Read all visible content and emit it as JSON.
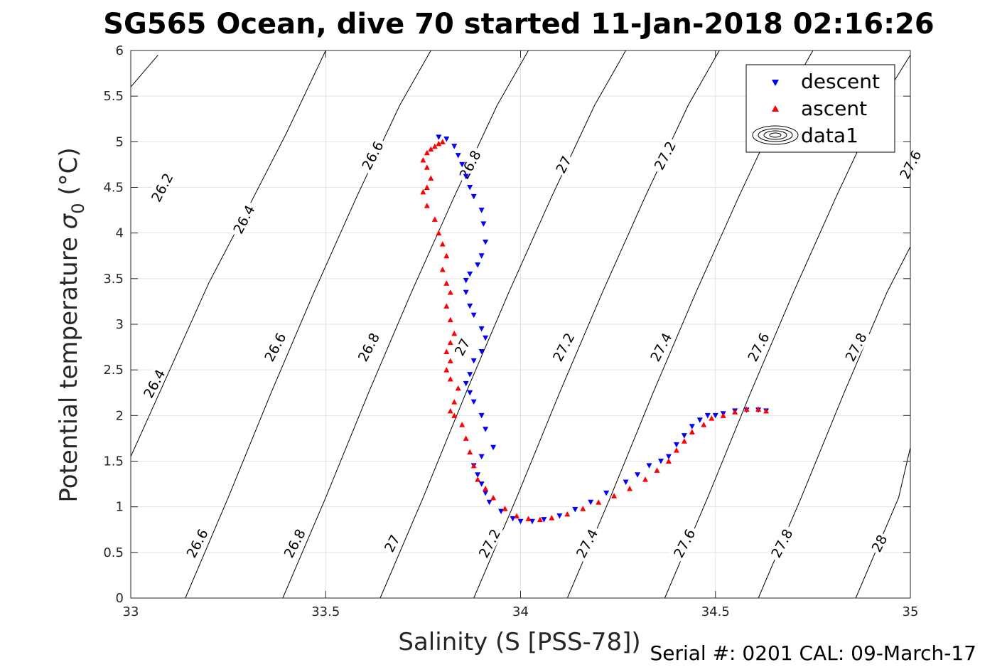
{
  "chart_data": {
    "type": "scatter",
    "title": "SG565 Ocean, dive 70 started 11-Jan-2018 02:16:26",
    "xlabel": "Salinity (S [PSS-78])",
    "ylabel_main": "Potential temperature ",
    "ylabel_sym": "σ",
    "ylabel_sub": "0",
    "ylabel_unit": " (°C)",
    "xlim": [
      33,
      35
    ],
    "ylim": [
      0,
      6
    ],
    "xticks": [
      33,
      33.5,
      34,
      34.5,
      35
    ],
    "xtick_labels": [
      "33",
      "33.5",
      "34",
      "34.5",
      "35"
    ],
    "yticks": [
      0,
      0.5,
      1,
      1.5,
      2,
      2.5,
      3,
      3.5,
      4,
      4.5,
      5,
      5.5,
      6
    ],
    "ytick_labels": [
      "0",
      "0.5",
      "1",
      "1.5",
      "2",
      "2.5",
      "3",
      "3.5",
      "4",
      "4.5",
      "5",
      "5.5",
      "6"
    ],
    "grid": true,
    "legend_position": "top-right",
    "series": [
      {
        "name": "descent",
        "marker": "triangle-down",
        "color": "#0000ff",
        "points": [
          [
            33.79,
            5.05
          ],
          [
            33.81,
            5.03
          ],
          [
            33.83,
            4.95
          ],
          [
            33.84,
            4.85
          ],
          [
            33.85,
            4.75
          ],
          [
            33.86,
            4.62
          ],
          [
            33.87,
            4.5
          ],
          [
            33.88,
            4.4
          ],
          [
            33.9,
            4.25
          ],
          [
            33.905,
            4.1
          ],
          [
            33.91,
            3.9
          ],
          [
            33.9,
            3.75
          ],
          [
            33.89,
            3.65
          ],
          [
            33.87,
            3.55
          ],
          [
            33.86,
            3.48
          ],
          [
            33.86,
            3.35
          ],
          [
            33.87,
            3.2
          ],
          [
            33.88,
            3.1
          ],
          [
            33.9,
            2.95
          ],
          [
            33.91,
            2.85
          ],
          [
            33.9,
            2.7
          ],
          [
            33.88,
            2.6
          ],
          [
            33.87,
            2.45
          ],
          [
            33.86,
            2.35
          ],
          [
            33.87,
            2.25
          ],
          [
            33.88,
            2.15
          ],
          [
            33.9,
            2.0
          ],
          [
            33.91,
            1.85
          ],
          [
            33.93,
            1.65
          ],
          [
            33.9,
            1.55
          ],
          [
            33.88,
            1.45
          ],
          [
            33.89,
            1.35
          ],
          [
            33.9,
            1.25
          ],
          [
            33.91,
            1.15
          ],
          [
            33.92,
            1.05
          ],
          [
            33.95,
            0.95
          ],
          [
            33.98,
            0.87
          ],
          [
            34.0,
            0.84
          ],
          [
            34.03,
            0.84
          ],
          [
            34.06,
            0.86
          ],
          [
            34.1,
            0.9
          ],
          [
            34.14,
            0.97
          ],
          [
            34.18,
            1.05
          ],
          [
            34.22,
            1.15
          ],
          [
            34.27,
            1.27
          ],
          [
            34.3,
            1.35
          ],
          [
            34.33,
            1.45
          ],
          [
            34.36,
            1.5
          ],
          [
            34.38,
            1.55
          ],
          [
            34.4,
            1.68
          ],
          [
            34.42,
            1.78
          ],
          [
            34.44,
            1.88
          ],
          [
            34.46,
            1.95
          ],
          [
            34.48,
            2.0
          ],
          [
            34.5,
            2.0
          ],
          [
            34.52,
            2.02
          ],
          [
            34.55,
            2.05
          ],
          [
            34.58,
            2.06
          ],
          [
            34.61,
            2.06
          ],
          [
            34.63,
            2.05
          ]
        ]
      },
      {
        "name": "ascent",
        "marker": "triangle-up",
        "color": "#ff0000",
        "points": [
          [
            33.8,
            5.0
          ],
          [
            33.79,
            4.98
          ],
          [
            33.78,
            4.95
          ],
          [
            33.77,
            4.92
          ],
          [
            33.76,
            4.88
          ],
          [
            33.75,
            4.8
          ],
          [
            33.76,
            4.72
          ],
          [
            33.77,
            4.6
          ],
          [
            33.76,
            4.5
          ],
          [
            33.75,
            4.45
          ],
          [
            33.76,
            4.3
          ],
          [
            33.78,
            4.15
          ],
          [
            33.79,
            4.0
          ],
          [
            33.8,
            3.88
          ],
          [
            33.81,
            3.75
          ],
          [
            33.8,
            3.6
          ],
          [
            33.81,
            3.45
          ],
          [
            33.82,
            3.35
          ],
          [
            33.81,
            3.2
          ],
          [
            33.82,
            3.05
          ],
          [
            33.83,
            2.9
          ],
          [
            33.82,
            2.8
          ],
          [
            33.81,
            2.7
          ],
          [
            33.82,
            2.6
          ],
          [
            33.81,
            2.5
          ],
          [
            33.82,
            2.4
          ],
          [
            33.84,
            2.3
          ],
          [
            33.83,
            2.15
          ],
          [
            33.82,
            2.05
          ],
          [
            33.83,
            2.0
          ],
          [
            33.85,
            1.9
          ],
          [
            33.86,
            1.75
          ],
          [
            33.87,
            1.6
          ],
          [
            33.88,
            1.45
          ],
          [
            33.89,
            1.3
          ],
          [
            33.91,
            1.2
          ],
          [
            33.93,
            1.1
          ],
          [
            33.96,
            0.98
          ],
          [
            33.99,
            0.9
          ],
          [
            34.02,
            0.87
          ],
          [
            34.05,
            0.86
          ],
          [
            34.08,
            0.88
          ],
          [
            34.12,
            0.92
          ],
          [
            34.16,
            0.98
          ],
          [
            34.2,
            1.05
          ],
          [
            34.24,
            1.12
          ],
          [
            34.28,
            1.2
          ],
          [
            34.32,
            1.3
          ],
          [
            34.35,
            1.4
          ],
          [
            34.38,
            1.5
          ],
          [
            34.4,
            1.62
          ],
          [
            34.42,
            1.72
          ],
          [
            34.44,
            1.82
          ],
          [
            34.47,
            1.9
          ],
          [
            34.49,
            1.97
          ],
          [
            34.52,
            2.0
          ],
          [
            34.55,
            2.04
          ],
          [
            34.58,
            2.07
          ],
          [
            34.61,
            2.07
          ],
          [
            34.63,
            2.05
          ]
        ]
      },
      {
        "name": "data1",
        "marker": "contour",
        "color": "#000000",
        "points": []
      }
    ],
    "contours": [
      {
        "label": "26.2",
        "label_x": 33.08,
        "label_y": 4.5
      },
      {
        "label": "26.4",
        "label_x": 33.29,
        "label_y": 4.15,
        "label2_x": 33.06,
        "label2_y": 2.35
      },
      {
        "label": "26.6",
        "label_x": 33.62,
        "label_y": 4.85,
        "label2_x": 33.37,
        "label2_y": 2.75,
        "label3_x": 33.17,
        "label3_y": 0.6
      },
      {
        "label": "26.8",
        "label_x": 33.87,
        "label_y": 4.75,
        "label2_x": 33.61,
        "label2_y": 2.75,
        "label3_x": 33.42,
        "label3_y": 0.6
      },
      {
        "label": "27",
        "label_x": 34.11,
        "label_y": 4.75,
        "label2_x": 33.85,
        "label2_y": 2.75,
        "label3_x": 33.67,
        "label3_y": 0.6
      },
      {
        "label": "27.2",
        "label_x": 34.37,
        "label_y": 4.85,
        "label2_x": 34.11,
        "label2_y": 2.75,
        "label3_x": 33.92,
        "label3_y": 0.6
      },
      {
        "label": "27.4",
        "label_x": 34.36,
        "label_y": 2.75,
        "label2_x": 34.17,
        "label2_y": 0.6
      },
      {
        "label": "27.6",
        "label_x": 35.0,
        "label_y": 4.75,
        "label2_x": 34.61,
        "label2_y": 2.75,
        "label3_x": 34.42,
        "label3_y": 0.6
      },
      {
        "label": "27.8",
        "label_x": 34.86,
        "label_y": 2.75,
        "label2_x": 34.67,
        "label2_y": 0.6
      },
      {
        "label": "28",
        "label_x": 34.92,
        "label_y": 0.6
      }
    ],
    "contour_lines": [
      {
        "value": 26.2,
        "pts": [
          [
            33.0,
            5.6
          ],
          [
            33.07,
            5.95
          ]
        ]
      },
      {
        "value": 26.4,
        "pts": [
          [
            33.0,
            1.55
          ],
          [
            33.1,
            2.5
          ],
          [
            33.2,
            3.45
          ],
          [
            33.31,
            4.35
          ],
          [
            33.4,
            5.1
          ],
          [
            33.5,
            6.0
          ]
        ]
      },
      {
        "value": 26.6,
        "pts": [
          [
            33.14,
            0.0
          ],
          [
            33.25,
            1.1
          ],
          [
            33.36,
            2.25
          ],
          [
            33.47,
            3.35
          ],
          [
            33.58,
            4.4
          ],
          [
            33.69,
            5.4
          ],
          [
            33.77,
            6.0
          ]
        ]
      },
      {
        "value": 26.8,
        "pts": [
          [
            33.39,
            0.0
          ],
          [
            33.5,
            1.1
          ],
          [
            33.61,
            2.25
          ],
          [
            33.72,
            3.35
          ],
          [
            33.83,
            4.4
          ],
          [
            33.94,
            5.4
          ],
          [
            34.02,
            6.0
          ]
        ]
      },
      {
        "value": 27.0,
        "pts": [
          [
            33.64,
            0.0
          ],
          [
            33.75,
            1.1
          ],
          [
            33.86,
            2.25
          ],
          [
            33.97,
            3.35
          ],
          [
            34.08,
            4.4
          ],
          [
            34.19,
            5.4
          ],
          [
            34.27,
            6.0
          ]
        ]
      },
      {
        "value": 27.2,
        "pts": [
          [
            33.88,
            0.0
          ],
          [
            33.99,
            1.1
          ],
          [
            34.1,
            2.25
          ],
          [
            34.21,
            3.35
          ],
          [
            34.32,
            4.4
          ],
          [
            34.43,
            5.4
          ],
          [
            34.51,
            6.0
          ]
        ]
      },
      {
        "value": 27.4,
        "pts": [
          [
            34.12,
            0.0
          ],
          [
            34.23,
            1.1
          ],
          [
            34.34,
            2.25
          ],
          [
            34.45,
            3.35
          ],
          [
            34.56,
            4.4
          ],
          [
            34.67,
            5.4
          ],
          [
            34.75,
            6.0
          ]
        ]
      },
      {
        "value": 27.6,
        "pts": [
          [
            34.37,
            0.0
          ],
          [
            34.48,
            1.1
          ],
          [
            34.59,
            2.25
          ],
          [
            34.7,
            3.35
          ],
          [
            34.81,
            4.4
          ],
          [
            34.92,
            5.4
          ],
          [
            35.0,
            5.95
          ]
        ]
      },
      {
        "value": 27.8,
        "pts": [
          [
            34.61,
            0.0
          ],
          [
            34.72,
            1.1
          ],
          [
            34.83,
            2.25
          ],
          [
            34.94,
            3.35
          ],
          [
            35.0,
            3.85
          ]
        ]
      },
      {
        "value": 28.0,
        "pts": [
          [
            34.86,
            0.0
          ],
          [
            34.97,
            1.1
          ],
          [
            35.0,
            1.65
          ]
        ]
      }
    ]
  },
  "footer": "Serial #: 0201  CAL: 09-March-17"
}
